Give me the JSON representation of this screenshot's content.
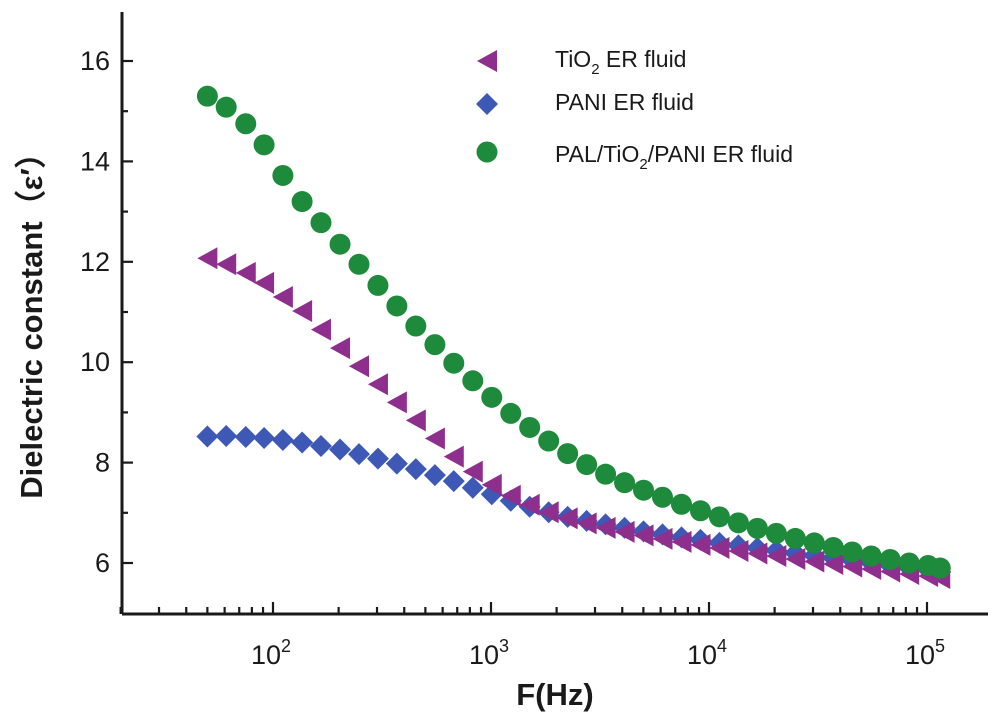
{
  "chart_data": {
    "type": "scatter",
    "title": "",
    "xlabel": "F(Hz)",
    "ylabel": "Dielectric constant（ε′）",
    "xscale": "log",
    "xlim": [
      20,
      150000
    ],
    "ylim": [
      5.0,
      17.0
    ],
    "x_ticks": [
      {
        "value": 100,
        "base": "10",
        "exp": "2"
      },
      {
        "value": 1000,
        "base": "10",
        "exp": "3"
      },
      {
        "value": 10000,
        "base": "10",
        "exp": "4"
      },
      {
        "value": 100000,
        "base": "10",
        "exp": "5"
      }
    ],
    "y_ticks": [
      "6",
      "8",
      "10",
      "12",
      "14",
      "16"
    ],
    "legend_position": "top-right",
    "series": [
      {
        "name": "TiO2 ER fluid",
        "label_main": "TiO",
        "label_sub": "2",
        "label_rest": " ER fluid",
        "marker": "triangle-left",
        "color": "#8e2f8e",
        "x": [
          50,
          61,
          75,
          91,
          111,
          136,
          166,
          203,
          248,
          303,
          370,
          452,
          553,
          675,
          825,
          1008,
          1232,
          1505,
          1839,
          2247,
          2746,
          3355,
          4099,
          5009,
          6120,
          7478,
          9137,
          11165,
          13642,
          16669,
          20368,
          24888,
          30410,
          37158,
          45403,
          55478,
          67789,
          82832,
          101212,
          115000
        ],
        "y": [
          12.07,
          11.95,
          11.78,
          11.58,
          11.3,
          11.02,
          10.65,
          10.28,
          9.92,
          9.56,
          9.2,
          8.84,
          8.48,
          8.12,
          7.82,
          7.56,
          7.34,
          7.16,
          7.01,
          6.89,
          6.79,
          6.7,
          6.62,
          6.55,
          6.48,
          6.42,
          6.36,
          6.3,
          6.24,
          6.19,
          6.14,
          6.08,
          6.03,
          5.98,
          5.93,
          5.88,
          5.83,
          5.78,
          5.74,
          5.7
        ]
      },
      {
        "name": "PANI ER fluid",
        "label_main": "PANI ER fluid",
        "label_sub": "",
        "label_rest": "",
        "marker": "diamond",
        "color": "#3d58b5",
        "x": [
          50,
          61,
          75,
          91,
          111,
          136,
          166,
          203,
          248,
          303,
          370,
          452,
          553,
          675,
          825,
          1008,
          1232,
          1505,
          1839,
          2247,
          2746,
          3355,
          4099,
          5009,
          6120,
          7478,
          9137,
          11165,
          13642,
          16669,
          20368,
          24888,
          30410,
          37158,
          45403,
          55478,
          67789,
          82832,
          101212,
          115000
        ],
        "y": [
          8.52,
          8.53,
          8.51,
          8.49,
          8.45,
          8.4,
          8.33,
          8.26,
          8.17,
          8.08,
          7.98,
          7.87,
          7.75,
          7.63,
          7.5,
          7.37,
          7.24,
          7.12,
          7.01,
          6.92,
          6.84,
          6.77,
          6.7,
          6.63,
          6.57,
          6.51,
          6.46,
          6.4,
          6.35,
          6.3,
          6.25,
          6.2,
          6.15,
          6.1,
          6.05,
          6.0,
          5.95,
          5.9,
          5.86,
          5.82
        ]
      },
      {
        "name": "PAL/TiO2/PANI ER fluid",
        "label_main": "PAL/TiO",
        "label_sub": "2",
        "label_rest": "/PANI ER fluid",
        "marker": "circle",
        "color": "#1e8a3c",
        "x": [
          50,
          61,
          75,
          91,
          111,
          136,
          166,
          203,
          248,
          303,
          370,
          452,
          553,
          675,
          825,
          1008,
          1232,
          1505,
          1839,
          2247,
          2746,
          3355,
          4099,
          5009,
          6120,
          7478,
          9137,
          11165,
          13642,
          16669,
          20368,
          24888,
          30410,
          37158,
          45403,
          55478,
          67789,
          82832,
          101212,
          115000
        ],
        "y": [
          15.3,
          15.08,
          14.75,
          14.33,
          13.72,
          13.2,
          12.78,
          12.35,
          11.95,
          11.53,
          11.12,
          10.72,
          10.35,
          9.98,
          9.63,
          9.3,
          8.98,
          8.7,
          8.43,
          8.18,
          7.96,
          7.77,
          7.6,
          7.45,
          7.31,
          7.17,
          7.04,
          6.92,
          6.8,
          6.69,
          6.59,
          6.49,
          6.4,
          6.31,
          6.22,
          6.14,
          6.07,
          6.0,
          5.95,
          5.9
        ]
      }
    ]
  }
}
